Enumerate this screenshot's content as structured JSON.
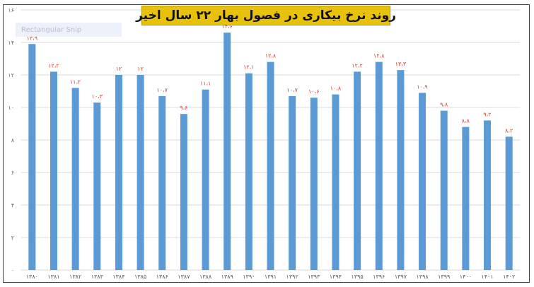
{
  "chart_data": {
    "type": "bar",
    "title": "روند نرخ بیکاری در فصول بهار ۲۲ سال اخیر",
    "categories": [
      "۱۳۸۰",
      "۱۳۸۱",
      "۱۳۸۲",
      "۱۳۸۳",
      "۱۳۸۴",
      "۱۳۸۵",
      "۱۳۸۶",
      "۱۳۸۷",
      "۱۳۸۸",
      "۱۳۸۹",
      "۱۳۹۰",
      "۱۳۹۱",
      "۱۳۹۲",
      "۱۳۹۳",
      "۱۳۹۴",
      "۱۳۹۵",
      "۱۳۹۶",
      "۱۳۹۷",
      "۱۳۹۸",
      "۱۳۹۹",
      "۱۴۰۰",
      "۱۴۰۱",
      "۱۴۰۲"
    ],
    "values": [
      13.9,
      12.2,
      11.2,
      10.3,
      12,
      12,
      10.7,
      9.6,
      11.1,
      14.6,
      12.1,
      12.8,
      10.7,
      10.6,
      10.8,
      12.2,
      12.8,
      12.3,
      10.9,
      9.8,
      8.8,
      9.2,
      8.2
    ],
    "value_labels": [
      "۱۳،۹",
      "۱۲،۲",
      "۱۱،۲",
      "۱۰،۳",
      "۱۲",
      "۱۲",
      "۱۰،۷",
      "۹،۶",
      "۱۱،۱",
      "۱۴،۶",
      "۱۲،۱",
      "۱۲،۸",
      "۱۰،۷",
      "۱۰،۶",
      "۱۰،۸",
      "۱۲،۲",
      "۱۲،۸",
      "۱۲،۳",
      "۱۰،۹",
      "۹،۸",
      "۸،۸",
      "۹،۲",
      "۸،۲"
    ],
    "yticks": [
      0,
      2,
      4,
      6,
      8,
      10,
      12,
      14,
      16
    ],
    "ytick_labels": [
      "۰",
      "۲",
      "۴",
      "۶",
      "۸",
      "۱۰",
      "۱۲",
      "۱۴",
      "۱۶"
    ],
    "ylim": [
      0,
      16
    ],
    "grid": true,
    "bar_color": "#5b9bd5",
    "label_color": "#e0352b"
  },
  "title_bg_color": "#e8c20a",
  "overlay_label": "Rectangular Snip"
}
